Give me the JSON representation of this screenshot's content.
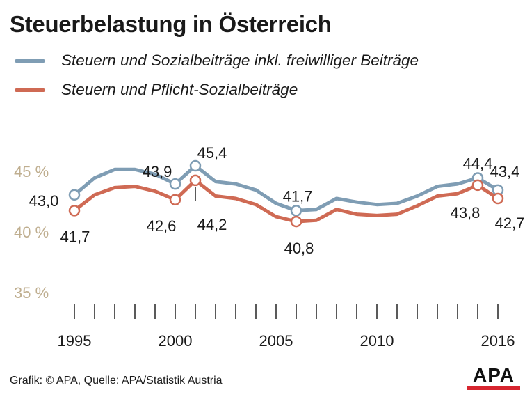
{
  "chart_data": {
    "type": "line",
    "title": "Steuerbelastung in Österreich",
    "x": [
      1995,
      1996,
      1997,
      1998,
      1999,
      2000,
      2001,
      2002,
      2003,
      2004,
      2005,
      2006,
      2007,
      2008,
      2009,
      2010,
      2011,
      2012,
      2013,
      2014,
      2015,
      2016
    ],
    "xtick_labels": [
      "1995",
      "2000",
      "2005",
      "2010",
      "2016"
    ],
    "xtick_values": [
      1995,
      2000,
      2005,
      2010,
      2016
    ],
    "ylim": [
      35,
      46.5
    ],
    "ytick_labels": [
      "45 %",
      "40 %",
      "35 %"
    ],
    "ytick_values": [
      45,
      40,
      35
    ],
    "series": [
      {
        "name": "Steuern und Sozialbeiträge inkl. freiwilliger Beiträge",
        "color": "#7f9db4",
        "values": [
          43.0,
          44.4,
          45.1,
          45.1,
          44.7,
          43.9,
          45.4,
          44.1,
          43.9,
          43.4,
          42.3,
          41.7,
          41.8,
          42.7,
          42.4,
          42.2,
          42.3,
          42.9,
          43.7,
          43.9,
          44.4,
          43.4
        ]
      },
      {
        "name": "Steuern und Pflicht-Sozialbeiträge",
        "color": "#cf6a54",
        "values": [
          41.7,
          43.0,
          43.6,
          43.7,
          43.3,
          42.6,
          44.2,
          42.9,
          42.7,
          42.2,
          41.2,
          40.8,
          40.9,
          41.8,
          41.4,
          41.3,
          41.4,
          42.1,
          42.9,
          43.1,
          43.8,
          42.7
        ]
      }
    ],
    "annotations": [
      {
        "label": "43,0",
        "series": 0,
        "year": 1995
      },
      {
        "label": "43,9",
        "series": 0,
        "year": 2000
      },
      {
        "label": "45,4",
        "series": 0,
        "year": 2001
      },
      {
        "label": "41,7",
        "series": 0,
        "year": 2006
      },
      {
        "label": "44,4",
        "series": 0,
        "year": 2015
      },
      {
        "label": "43,4",
        "series": 0,
        "year": 2016
      },
      {
        "label": "41,7",
        "series": 1,
        "year": 1995
      },
      {
        "label": "42,6",
        "series": 1,
        "year": 2000
      },
      {
        "label": "44,2",
        "series": 1,
        "year": 2001
      },
      {
        "label": "40,8",
        "series": 1,
        "year": 2006
      },
      {
        "label": "43,8",
        "series": 1,
        "year": 2015
      },
      {
        "label": "42,7",
        "series": 1,
        "year": 2016
      }
    ],
    "axis_label_color": "#bfae8f",
    "text_color": "#1a1a1a"
  },
  "footer": {
    "source": "Grafik: © APA, Quelle: APA/Statistik Austria",
    "logo_text": "APA",
    "logo_bar_color": "#d7252f"
  }
}
